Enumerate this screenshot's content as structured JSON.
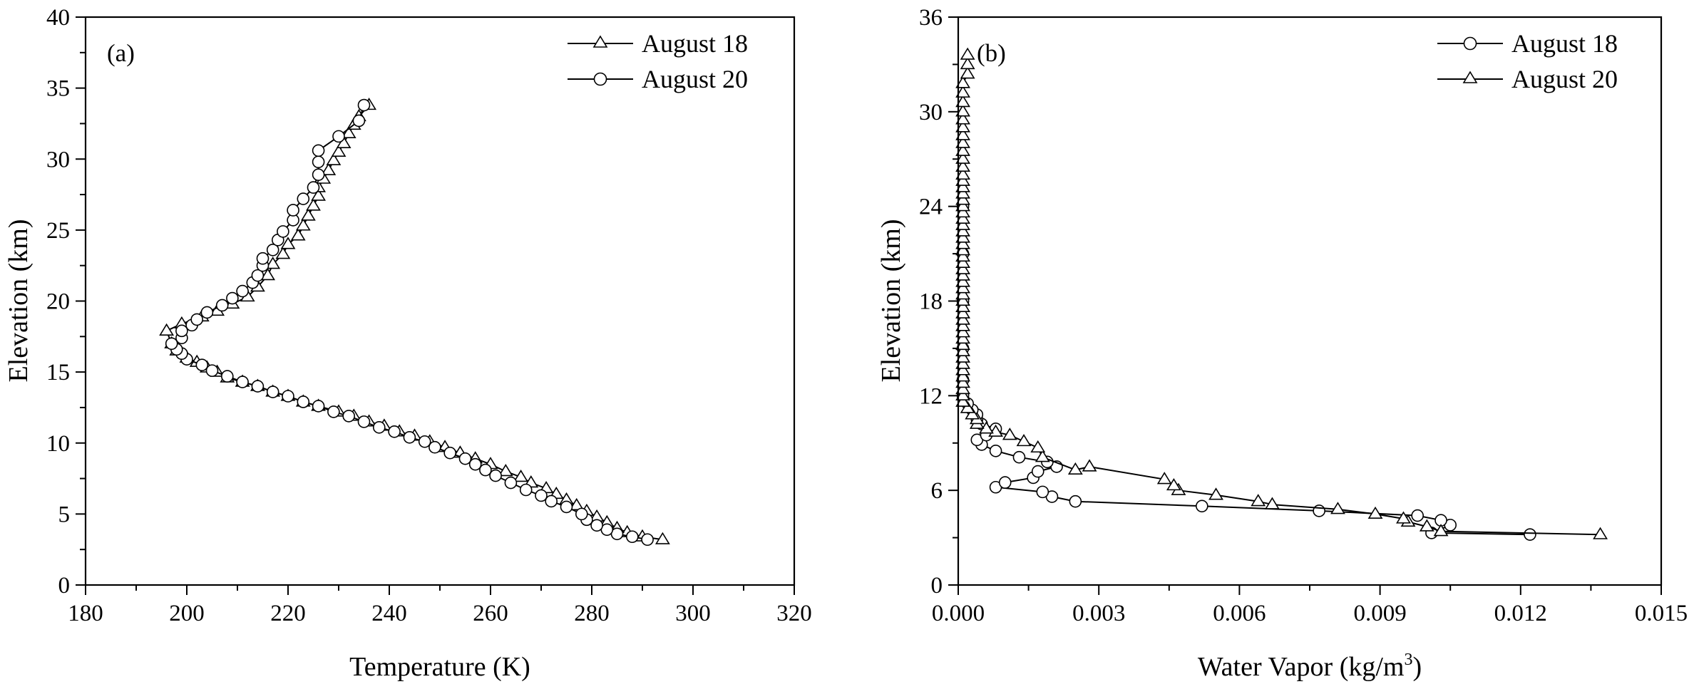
{
  "chart_data": [
    {
      "type": "line",
      "panel_label": "(a)",
      "xlabel": "Temperature (K)",
      "ylabel": "Elevation (km)",
      "xlim": [
        180,
        320
      ],
      "ylim": [
        0,
        40
      ],
      "x_ticks": [
        180,
        200,
        220,
        240,
        260,
        280,
        300,
        320
      ],
      "y_ticks": [
        0,
        5,
        10,
        15,
        20,
        25,
        30,
        35,
        40
      ],
      "x_tick_labels": [
        "180",
        "200",
        "220",
        "240",
        "260",
        "280",
        "300",
        "320"
      ],
      "y_tick_labels": [
        "0",
        "5",
        "10",
        "15",
        "20",
        "25",
        "30",
        "35",
        "40"
      ],
      "legend_position": "top-right",
      "series": [
        {
          "name": "August 18",
          "marker": "triangle",
          "points": [
            [
              294,
              3.2
            ],
            [
              290,
              3.4
            ],
            [
              287,
              3.7
            ],
            [
              285,
              4.0
            ],
            [
              283,
              4.4
            ],
            [
              281,
              4.8
            ],
            [
              279,
              5.2
            ],
            [
              277,
              5.6
            ],
            [
              275,
              6.0
            ],
            [
              273,
              6.4
            ],
            [
              271,
              6.8
            ],
            [
              268,
              7.2
            ],
            [
              266,
              7.6
            ],
            [
              263,
              8.0
            ],
            [
              260,
              8.5
            ],
            [
              257,
              8.9
            ],
            [
              254,
              9.3
            ],
            [
              251,
              9.7
            ],
            [
              248,
              10.1
            ],
            [
              245,
              10.5
            ],
            [
              242,
              10.8
            ],
            [
              239,
              11.2
            ],
            [
              236,
              11.5
            ],
            [
              233,
              11.9
            ],
            [
              230,
              12.2
            ],
            [
              226,
              12.6
            ],
            [
              223,
              12.9
            ],
            [
              220,
              13.3
            ],
            [
              217,
              13.6
            ],
            [
              214,
              14.0
            ],
            [
              211,
              14.3
            ],
            [
              208,
              14.6
            ],
            [
              206,
              15.0
            ],
            [
              204,
              15.3
            ],
            [
              202,
              15.7
            ],
            [
              200,
              16.0
            ],
            [
              198,
              16.5
            ],
            [
              197,
              17.0
            ],
            [
              196,
              17.9
            ],
            [
              199,
              18.4
            ],
            [
              203,
              18.9
            ],
            [
              206,
              19.3
            ],
            [
              209,
              19.8
            ],
            [
              212,
              20.3
            ],
            [
              214,
              21.0
            ],
            [
              216,
              21.8
            ],
            [
              217,
              22.6
            ],
            [
              219,
              23.3
            ],
            [
              220,
              24.0
            ],
            [
              222,
              24.6
            ],
            [
              223,
              25.3
            ],
            [
              224,
              26.0
            ],
            [
              225,
              26.7
            ],
            [
              226,
              27.4
            ],
            [
              226,
              28.0
            ],
            [
              227,
              28.6
            ],
            [
              228,
              29.2
            ],
            [
              229,
              29.9
            ],
            [
              230,
              30.5
            ],
            [
              231,
              31.1
            ],
            [
              232,
              31.8
            ],
            [
              233,
              32.4
            ],
            [
              234,
              33.0
            ],
            [
              236,
              33.8
            ]
          ]
        },
        {
          "name": "August 20",
          "marker": "circle",
          "points": [
            [
              291,
              3.2
            ],
            [
              288,
              3.4
            ],
            [
              285,
              3.6
            ],
            [
              283,
              3.9
            ],
            [
              281,
              4.2
            ],
            [
              279,
              4.6
            ],
            [
              278,
              5.0
            ],
            [
              275,
              5.5
            ],
            [
              272,
              5.9
            ],
            [
              270,
              6.3
            ],
            [
              267,
              6.7
            ],
            [
              264,
              7.2
            ],
            [
              261,
              7.7
            ],
            [
              259,
              8.1
            ],
            [
              257,
              8.5
            ],
            [
              255,
              8.9
            ],
            [
              252,
              9.3
            ],
            [
              249,
              9.7
            ],
            [
              247,
              10.1
            ],
            [
              244,
              10.4
            ],
            [
              241,
              10.8
            ],
            [
              238,
              11.1
            ],
            [
              235,
              11.5
            ],
            [
              232,
              11.9
            ],
            [
              229,
              12.2
            ],
            [
              226,
              12.6
            ],
            [
              223,
              12.9
            ],
            [
              220,
              13.3
            ],
            [
              217,
              13.6
            ],
            [
              214,
              14.0
            ],
            [
              211,
              14.3
            ],
            [
              208,
              14.7
            ],
            [
              205,
              15.1
            ],
            [
              203,
              15.5
            ],
            [
              200,
              15.9
            ],
            [
              199,
              16.3
            ],
            [
              198,
              16.6
            ],
            [
              197,
              17.0
            ],
            [
              199,
              17.4
            ],
            [
              199,
              17.9
            ],
            [
              201,
              18.3
            ],
            [
              202,
              18.7
            ],
            [
              204,
              19.2
            ],
            [
              207,
              19.7
            ],
            [
              209,
              20.2
            ],
            [
              211,
              20.7
            ],
            [
              213,
              21.3
            ],
            [
              214,
              21.8
            ],
            [
              215,
              22.5
            ],
            [
              215,
              23.0
            ],
            [
              217,
              23.6
            ],
            [
              218,
              24.3
            ],
            [
              219,
              24.9
            ],
            [
              221,
              25.7
            ],
            [
              221,
              26.4
            ],
            [
              223,
              27.2
            ],
            [
              225,
              28.0
            ],
            [
              226,
              28.9
            ],
            [
              226,
              29.8
            ],
            [
              226,
              30.6
            ],
            [
              230,
              31.6
            ],
            [
              234,
              32.7
            ],
            [
              235,
              33.8
            ]
          ]
        }
      ]
    },
    {
      "type": "line",
      "panel_label": "(b)",
      "xlabel_main": "Water Vapor (kg/m",
      "xlabel_sup": "3",
      "xlabel_end": ")",
      "ylabel": "Elevation (km)",
      "xlim": [
        0,
        0.015
      ],
      "ylim": [
        0,
        36
      ],
      "x_ticks": [
        0,
        0.003,
        0.006,
        0.009,
        0.012,
        0.015
      ],
      "y_ticks": [
        0,
        6,
        12,
        18,
        24,
        30,
        36
      ],
      "x_tick_labels": [
        "0.000",
        "0.003",
        "0.006",
        "0.009",
        "0.012",
        "0.015"
      ],
      "y_tick_labels": [
        "0",
        "6",
        "12",
        "18",
        "24",
        "30",
        "36"
      ],
      "legend_position": "top-right",
      "series": [
        {
          "name": "August 18",
          "marker": "circle",
          "points": [
            [
              0.0122,
              3.2
            ],
            [
              0.0101,
              3.3
            ],
            [
              0.0105,
              3.8
            ],
            [
              0.0103,
              4.1
            ],
            [
              0.0098,
              4.4
            ],
            [
              0.0077,
              4.7
            ],
            [
              0.0052,
              5.0
            ],
            [
              0.0025,
              5.3
            ],
            [
              0.002,
              5.6
            ],
            [
              0.0018,
              5.9
            ],
            [
              0.0008,
              6.2
            ],
            [
              0.001,
              6.5
            ],
            [
              0.0016,
              6.8
            ],
            [
              0.0017,
              7.2
            ],
            [
              0.0021,
              7.5
            ],
            [
              0.0019,
              7.8
            ],
            [
              0.0013,
              8.1
            ],
            [
              0.0008,
              8.5
            ],
            [
              0.0005,
              8.9
            ],
            [
              0.0004,
              9.2
            ],
            [
              0.0006,
              9.5
            ],
            [
              0.0008,
              9.9
            ],
            [
              0.0005,
              10.2
            ],
            [
              0.0004,
              10.5
            ],
            [
              0.0004,
              10.8
            ],
            [
              0.0003,
              11.1
            ],
            [
              0.0002,
              11.5
            ],
            [
              0.0001,
              12.0
            ],
            [
              0.0001,
              13.0
            ],
            [
              0.0001,
              15.0
            ],
            [
              0.0001,
              18.0
            ],
            [
              0.0001,
              21.0
            ],
            [
              0.0001,
              24.0
            ]
          ]
        },
        {
          "name": "August 20",
          "marker": "triangle",
          "points": [
            [
              0.0137,
              3.2
            ],
            [
              0.0103,
              3.4
            ],
            [
              0.01,
              3.7
            ],
            [
              0.0096,
              4.0
            ],
            [
              0.0095,
              4.2
            ],
            [
              0.0089,
              4.5
            ],
            [
              0.0081,
              4.8
            ],
            [
              0.0067,
              5.1
            ],
            [
              0.0064,
              5.3
            ],
            [
              0.0055,
              5.7
            ],
            [
              0.0047,
              6.0
            ],
            [
              0.0046,
              6.3
            ],
            [
              0.0044,
              6.7
            ],
            [
              0.0028,
              7.5
            ],
            [
              0.0025,
              7.3
            ],
            [
              0.0018,
              8.1
            ],
            [
              0.0017,
              8.7
            ],
            [
              0.0014,
              9.1
            ],
            [
              0.0011,
              9.5
            ],
            [
              0.0008,
              9.7
            ],
            [
              0.0006,
              9.9
            ],
            [
              0.0004,
              10.2
            ],
            [
              0.0004,
              10.5
            ],
            [
              0.0003,
              10.8
            ],
            [
              0.0002,
              11.2
            ],
            [
              0.0001,
              11.6
            ],
            [
              0.0001,
              12.0
            ],
            [
              0.0001,
              12.4
            ],
            [
              0.0001,
              12.8
            ],
            [
              0.0001,
              13.2
            ],
            [
              0.0001,
              13.6
            ],
            [
              0.0001,
              14.0
            ],
            [
              0.0001,
              14.4
            ],
            [
              0.0001,
              14.8
            ],
            [
              0.0001,
              15.2
            ],
            [
              0.0001,
              15.6
            ],
            [
              0.0001,
              16.0
            ],
            [
              0.0001,
              16.4
            ],
            [
              0.0001,
              16.8
            ],
            [
              0.0001,
              17.2
            ],
            [
              0.0001,
              17.6
            ],
            [
              0.0001,
              18.0
            ],
            [
              0.0001,
              18.4
            ],
            [
              0.0001,
              18.8
            ],
            [
              0.0001,
              19.2
            ],
            [
              0.0001,
              19.6
            ],
            [
              0.0001,
              20.0
            ],
            [
              0.0001,
              20.4
            ],
            [
              0.0001,
              20.8
            ],
            [
              0.0001,
              21.2
            ],
            [
              0.0001,
              21.6
            ],
            [
              0.0001,
              22.0
            ],
            [
              0.0001,
              22.4
            ],
            [
              0.0001,
              22.8
            ],
            [
              0.0001,
              23.2
            ],
            [
              0.0001,
              23.6
            ],
            [
              0.0001,
              24.0
            ],
            [
              0.0001,
              24.4
            ],
            [
              0.0001,
              24.8
            ],
            [
              0.0001,
              25.2
            ],
            [
              0.0001,
              25.6
            ],
            [
              0.0001,
              26.0
            ],
            [
              0.0001,
              26.5
            ],
            [
              0.0001,
              27.0
            ],
            [
              0.0001,
              27.5
            ],
            [
              0.0001,
              28.0
            ],
            [
              0.0001,
              28.5
            ],
            [
              0.0001,
              29.0
            ],
            [
              0.0001,
              29.5
            ],
            [
              0.0001,
              30.0
            ],
            [
              0.0001,
              30.6
            ],
            [
              0.0001,
              31.2
            ],
            [
              0.0001,
              31.8
            ],
            [
              0.0002,
              32.4
            ],
            [
              0.0002,
              33.0
            ],
            [
              0.0002,
              33.6
            ]
          ]
        }
      ]
    }
  ]
}
